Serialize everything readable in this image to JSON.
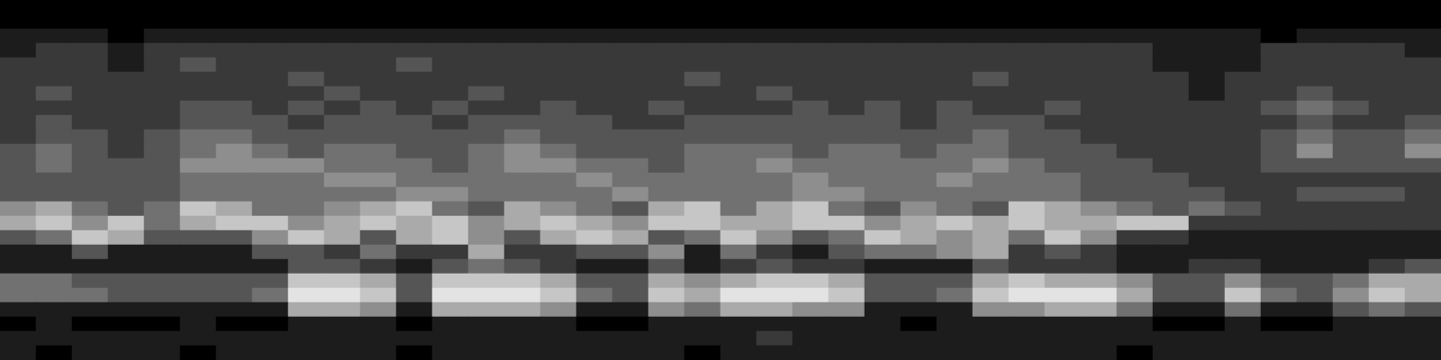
{
  "chart_data": {
    "type": "heatmap",
    "cells": [
      [
        0,
        0,
        0,
        0,
        0,
        0,
        0,
        0,
        0,
        0,
        0,
        0,
        0,
        0,
        0,
        0,
        0,
        0,
        0,
        0,
        0,
        0,
        0,
        0,
        0,
        0,
        0,
        0,
        0,
        0,
        0,
        0,
        0,
        0,
        0,
        0,
        0,
        0,
        0,
        0
      ],
      [
        0,
        0,
        0,
        0,
        0,
        0,
        0,
        0,
        0,
        0,
        0,
        0,
        0,
        0,
        0,
        0,
        0,
        0,
        0,
        0,
        0,
        0,
        0,
        0,
        0,
        0,
        0,
        0,
        0,
        0,
        0,
        0,
        0,
        0,
        0,
        0,
        0,
        0,
        0,
        0
      ],
      [
        1,
        1,
        1,
        0,
        1,
        1,
        1,
        1,
        1,
        1,
        1,
        1,
        1,
        1,
        1,
        1,
        1,
        1,
        1,
        1,
        1,
        1,
        1,
        1,
        1,
        1,
        1,
        1,
        1,
        1,
        1,
        1,
        1,
        1,
        1,
        0,
        1,
        1,
        1,
        1
      ],
      [
        1,
        2,
        2,
        1,
        2,
        2,
        2,
        2,
        2,
        2,
        2,
        2,
        2,
        2,
        2,
        2,
        2,
        2,
        2,
        2,
        2,
        2,
        2,
        2,
        2,
        2,
        2,
        2,
        2,
        2,
        2,
        2,
        1,
        1,
        1,
        2,
        2,
        2,
        2,
        1
      ],
      [
        2,
        2,
        2,
        1,
        2,
        3,
        2,
        2,
        2,
        2,
        2,
        3,
        2,
        2,
        2,
        2,
        2,
        2,
        2,
        2,
        2,
        2,
        2,
        2,
        2,
        2,
        2,
        2,
        2,
        2,
        2,
        2,
        1,
        1,
        1,
        2,
        2,
        2,
        2,
        2
      ],
      [
        2,
        2,
        2,
        2,
        2,
        2,
        2,
        2,
        3,
        2,
        2,
        2,
        2,
        2,
        2,
        2,
        2,
        2,
        2,
        3,
        2,
        2,
        2,
        2,
        2,
        2,
        2,
        3,
        2,
        2,
        2,
        2,
        2,
        1,
        2,
        2,
        2,
        2,
        2,
        2
      ],
      [
        2,
        3,
        2,
        2,
        2,
        2,
        2,
        2,
        2,
        3,
        2,
        2,
        2,
        3,
        2,
        2,
        2,
        2,
        2,
        2,
        2,
        3,
        2,
        2,
        2,
        2,
        2,
        2,
        2,
        2,
        2,
        2,
        2,
        1,
        2,
        2,
        3,
        2,
        2,
        2
      ],
      [
        2,
        2,
        2,
        2,
        2,
        3,
        3,
        2,
        3,
        2,
        3,
        2,
        3,
        2,
        2,
        3,
        2,
        2,
        3,
        2,
        2,
        2,
        3,
        2,
        3,
        2,
        3,
        2,
        2,
        3,
        2,
        2,
        2,
        2,
        2,
        3,
        4,
        3,
        2,
        2
      ],
      [
        2,
        3,
        2,
        2,
        2,
        3,
        3,
        3,
        2,
        3,
        3,
        3,
        2,
        3,
        3,
        3,
        3,
        2,
        2,
        3,
        3,
        3,
        3,
        3,
        3,
        2,
        3,
        3,
        3,
        2,
        2,
        2,
        2,
        2,
        2,
        2,
        3,
        2,
        2,
        3
      ],
      [
        2,
        3,
        3,
        2,
        3,
        4,
        4,
        3,
        3,
        3,
        3,
        3,
        3,
        3,
        4,
        3,
        3,
        3,
        3,
        3,
        3,
        3,
        3,
        3,
        3,
        3,
        3,
        4,
        3,
        3,
        2,
        2,
        2,
        2,
        2,
        3,
        4,
        3,
        3,
        4
      ],
      [
        3,
        4,
        3,
        2,
        3,
        4,
        5,
        4,
        3,
        4,
        4,
        3,
        3,
        4,
        5,
        4,
        3,
        3,
        3,
        4,
        4,
        4,
        3,
        4,
        4,
        3,
        4,
        4,
        3,
        3,
        3,
        2,
        2,
        2,
        2,
        3,
        5,
        3,
        3,
        5
      ],
      [
        3,
        4,
        3,
        3,
        3,
        5,
        5,
        5,
        5,
        4,
        4,
        4,
        3,
        4,
        5,
        5,
        4,
        4,
        3,
        4,
        4,
        5,
        4,
        4,
        4,
        4,
        4,
        5,
        4,
        3,
        3,
        3,
        2,
        2,
        2,
        3,
        3,
        3,
        3,
        3
      ],
      [
        3,
        3,
        3,
        3,
        3,
        4,
        4,
        4,
        4,
        5,
        5,
        4,
        4,
        4,
        4,
        4,
        5,
        4,
        4,
        4,
        4,
        4,
        5,
        4,
        4,
        4,
        5,
        4,
        4,
        4,
        3,
        3,
        3,
        2,
        2,
        2,
        2,
        2,
        2,
        2
      ],
      [
        3,
        3,
        3,
        3,
        3,
        4,
        4,
        4,
        4,
        4,
        4,
        5,
        5,
        4,
        4,
        4,
        4,
        5,
        4,
        4,
        4,
        4,
        5,
        5,
        4,
        4,
        4,
        4,
        4,
        4,
        3,
        3,
        3,
        3,
        2,
        2,
        3,
        3,
        3,
        2
      ],
      [
        5,
        6,
        4,
        3,
        4,
        7,
        6,
        4,
        4,
        5,
        6,
        7,
        4,
        3,
        6,
        5,
        4,
        3,
        6,
        7,
        4,
        6,
        7,
        4,
        3,
        5,
        4,
        3,
        7,
        6,
        5,
        4,
        3,
        4,
        3,
        2,
        2,
        2,
        2,
        2
      ],
      [
        6,
        7,
        5,
        7,
        4,
        6,
        7,
        7,
        5,
        6,
        7,
        6,
        7,
        5,
        6,
        7,
        6,
        5,
        7,
        7,
        6,
        6,
        7,
        7,
        5,
        6,
        7,
        6,
        7,
        6,
        6,
        7,
        7,
        2,
        2,
        2,
        2,
        2,
        2,
        2
      ],
      [
        3,
        4,
        7,
        6,
        3,
        3,
        3,
        5,
        7,
        6,
        3,
        6,
        7,
        5,
        3,
        6,
        7,
        6,
        3,
        4,
        7,
        5,
        3,
        4,
        7,
        6,
        5,
        6,
        4,
        7,
        5,
        2,
        2,
        1,
        1,
        1,
        1,
        1,
        1,
        1
      ],
      [
        1,
        1,
        3,
        1,
        1,
        1,
        1,
        3,
        3,
        2,
        4,
        2,
        2,
        6,
        2,
        2,
        3,
        3,
        5,
        1,
        4,
        2,
        1,
        3,
        4,
        4,
        5,
        6,
        2,
        3,
        2,
        1,
        1,
        1,
        1,
        1,
        1,
        1,
        1,
        1
      ],
      [
        1,
        1,
        1,
        1,
        1,
        1,
        1,
        1,
        3,
        3,
        2,
        1,
        3,
        4,
        3,
        2,
        1,
        1,
        3,
        1,
        2,
        3,
        2,
        2,
        1,
        1,
        1,
        3,
        2,
        2,
        2,
        1,
        1,
        2,
        2,
        1,
        1,
        1,
        2,
        3
      ],
      [
        4,
        4,
        3,
        3,
        3,
        3,
        3,
        3,
        7,
        7,
        6,
        3,
        7,
        7,
        7,
        6,
        3,
        3,
        6,
        5,
        6,
        7,
        7,
        6,
        3,
        3,
        3,
        6,
        7,
        6,
        6,
        5,
        3,
        3,
        5,
        3,
        3,
        4,
        6,
        6
      ],
      [
        4,
        4,
        4,
        3,
        3,
        3,
        3,
        4,
        8,
        8,
        7,
        3,
        8,
        8,
        8,
        7,
        4,
        3,
        7,
        6,
        8,
        8,
        8,
        7,
        3,
        3,
        4,
        7,
        8,
        8,
        8,
        6,
        3,
        3,
        7,
        4,
        3,
        5,
        7,
        6
      ],
      [
        1,
        1,
        1,
        1,
        1,
        1,
        1,
        1,
        6,
        6,
        5,
        1,
        6,
        6,
        6,
        5,
        1,
        1,
        5,
        4,
        6,
        6,
        5,
        5,
        1,
        1,
        1,
        5,
        5,
        6,
        6,
        4,
        1,
        1,
        4,
        1,
        1,
        3,
        4,
        3
      ],
      [
        0,
        1,
        0,
        0,
        0,
        1,
        0,
        0,
        1,
        1,
        1,
        0,
        1,
        1,
        1,
        1,
        0,
        0,
        1,
        1,
        1,
        1,
        1,
        1,
        1,
        0,
        1,
        1,
        1,
        1,
        1,
        1,
        0,
        0,
        1,
        0,
        0,
        1,
        1,
        1
      ],
      [
        1,
        1,
        1,
        1,
        1,
        1,
        1,
        1,
        1,
        1,
        1,
        1,
        1,
        1,
        1,
        1,
        1,
        1,
        1,
        1,
        1,
        2,
        1,
        1,
        1,
        1,
        1,
        1,
        1,
        1,
        1,
        1,
        1,
        1,
        1,
        1,
        1,
        1,
        1,
        1
      ],
      [
        1,
        0,
        1,
        1,
        1,
        0,
        1,
        1,
        1,
        1,
        1,
        0,
        1,
        1,
        1,
        1,
        1,
        1,
        1,
        0,
        1,
        1,
        1,
        1,
        1,
        1,
        1,
        1,
        1,
        1,
        1,
        0,
        1,
        1,
        1,
        1,
        1,
        1,
        1,
        1
      ]
    ],
    "color_range": [
      0,
      9
    ],
    "tick_labels": false,
    "grid": false
  }
}
